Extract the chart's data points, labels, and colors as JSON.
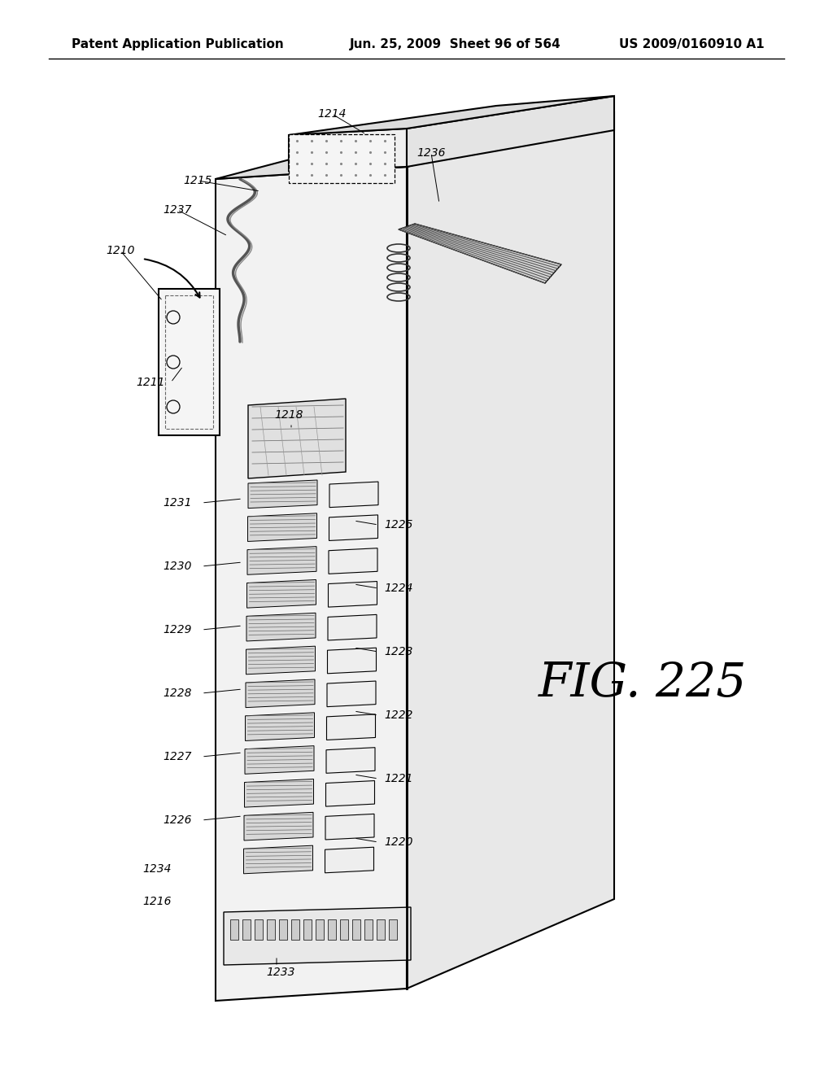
{
  "bg_color": "#ffffff",
  "header_left": "Patent Application Publication",
  "header_mid": "Jun. 25, 2009  Sheet 96 of 564",
  "header_right": "US 2009/0160910 A1",
  "fig_label": "FIG. 225",
  "text_color": "#000000",
  "header_fontsize": 11,
  "label_fontsize": 10,
  "fig_label_fontsize": 40
}
